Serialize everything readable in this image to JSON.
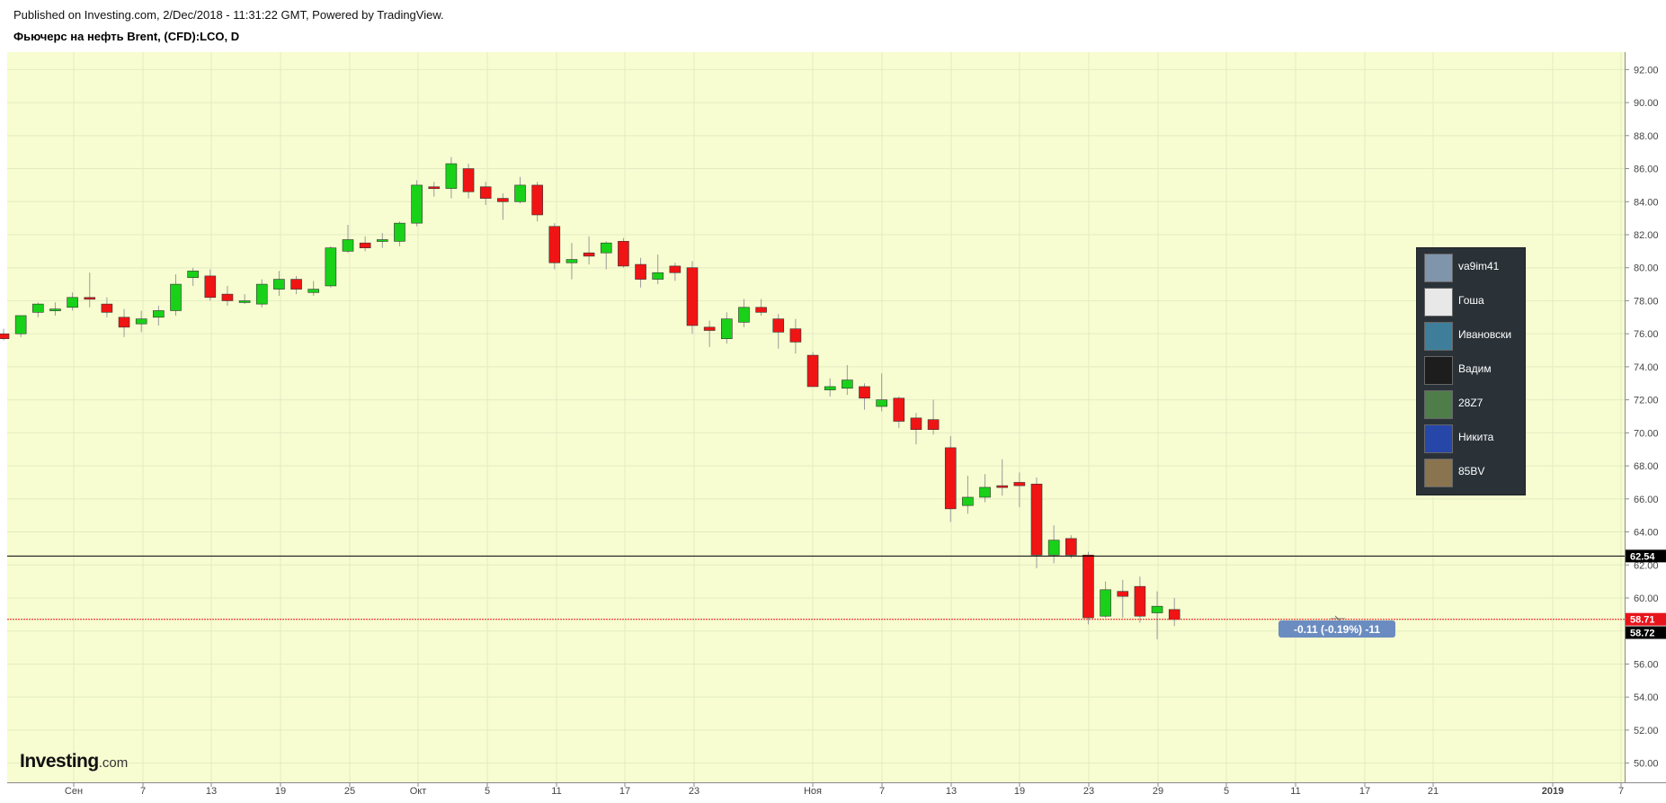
{
  "header": {
    "published": "Published on Investing.com, 2/Dec/2018 - 11:31:22 GMT, Powered by TradingView.",
    "title": "Фьючерс на нефть Brent, (CFD):LCO, D"
  },
  "logo": {
    "main": "Investing",
    "suffix": ".com"
  },
  "popup": {
    "users": [
      {
        "name": "va9im41",
        "thumb_color": "#7f95ab"
      },
      {
        "name": "Гоша",
        "thumb_color": "#e8e8e8"
      },
      {
        "name": "Ивановски",
        "thumb_color": "#3f7e9a"
      },
      {
        "name": "Вадим",
        "thumb_color": "#1d1d1d"
      },
      {
        "name": "28Z7",
        "thumb_color": "#4f7d4a"
      },
      {
        "name": "Никита",
        "thumb_color": "#2747a8"
      },
      {
        "name": "85BV",
        "thumb_color": "#8a7450"
      }
    ]
  },
  "chart_data": {
    "type": "candlestick",
    "y_axis": {
      "min": 49,
      "max": 93,
      "ticks": [
        "50.00",
        "52.00",
        "54.00",
        "56.00",
        "58.00",
        "60.00",
        "62.00",
        "64.00",
        "66.00",
        "68.00",
        "70.00",
        "72.00",
        "74.00",
        "76.00",
        "78.00",
        "80.00",
        "82.00",
        "84.00",
        "86.00",
        "88.00",
        "90.00",
        "92.00"
      ]
    },
    "x_ticks": [
      "Сен",
      "7",
      "13",
      "19",
      "25",
      "Окт",
      "5",
      "11",
      "17",
      "23",
      "Ноя",
      "7",
      "13",
      "19",
      "23",
      "29",
      "5",
      "11",
      "17",
      "21",
      "2019",
      "7"
    ],
    "candles": [
      {
        "o": 76.0,
        "h": 76.3,
        "l": 75.6,
        "c": 75.7
      },
      {
        "o": 76.0,
        "h": 77.1,
        "l": 75.8,
        "c": 77.1
      },
      {
        "o": 77.3,
        "h": 77.9,
        "l": 77.0,
        "c": 77.8
      },
      {
        "o": 77.5,
        "h": 77.9,
        "l": 77.1,
        "c": 77.5
      },
      {
        "o": 77.6,
        "h": 78.5,
        "l": 77.4,
        "c": 78.2
      },
      {
        "o": 78.2,
        "h": 79.7,
        "l": 77.6,
        "c": 78.1
      },
      {
        "o": 77.8,
        "h": 78.2,
        "l": 77.0,
        "c": 77.3
      },
      {
        "o": 77.0,
        "h": 77.5,
        "l": 75.8,
        "c": 76.4
      },
      {
        "o": 76.6,
        "h": 77.4,
        "l": 76.1,
        "c": 76.9
      },
      {
        "o": 77.0,
        "h": 77.7,
        "l": 76.5,
        "c": 77.4
      },
      {
        "o": 77.4,
        "h": 79.6,
        "l": 77.1,
        "c": 79.0
      },
      {
        "o": 79.4,
        "h": 80.0,
        "l": 78.9,
        "c": 79.8
      },
      {
        "o": 79.5,
        "h": 79.9,
        "l": 78.0,
        "c": 78.2
      },
      {
        "o": 78.4,
        "h": 78.9,
        "l": 77.7,
        "c": 78.0
      },
      {
        "o": 78.0,
        "h": 78.4,
        "l": 77.8,
        "c": 78.0
      },
      {
        "o": 77.8,
        "h": 79.3,
        "l": 77.6,
        "c": 79.0
      },
      {
        "o": 78.7,
        "h": 79.8,
        "l": 78.3,
        "c": 79.3
      },
      {
        "o": 79.3,
        "h": 79.5,
        "l": 78.4,
        "c": 78.7
      },
      {
        "o": 78.5,
        "h": 79.2,
        "l": 78.3,
        "c": 78.7
      },
      {
        "o": 78.9,
        "h": 81.3,
        "l": 78.8,
        "c": 81.2
      },
      {
        "o": 81.0,
        "h": 82.6,
        "l": 80.9,
        "c": 81.7
      },
      {
        "o": 81.5,
        "h": 81.9,
        "l": 81.0,
        "c": 81.2
      },
      {
        "o": 81.6,
        "h": 82.1,
        "l": 81.2,
        "c": 81.7
      },
      {
        "o": 81.6,
        "h": 82.8,
        "l": 81.3,
        "c": 82.7
      },
      {
        "o": 82.7,
        "h": 85.3,
        "l": 82.5,
        "c": 85.0
      },
      {
        "o": 84.9,
        "h": 85.2,
        "l": 84.3,
        "c": 84.8
      },
      {
        "o": 84.8,
        "h": 86.7,
        "l": 84.2,
        "c": 86.3
      },
      {
        "o": 86.0,
        "h": 86.3,
        "l": 84.2,
        "c": 84.6
      },
      {
        "o": 84.9,
        "h": 85.2,
        "l": 83.8,
        "c": 84.2
      },
      {
        "o": 84.2,
        "h": 84.5,
        "l": 82.9,
        "c": 84.0
      },
      {
        "o": 84.0,
        "h": 85.5,
        "l": 83.9,
        "c": 85.0
      },
      {
        "o": 85.0,
        "h": 85.2,
        "l": 82.8,
        "c": 83.2
      },
      {
        "o": 82.5,
        "h": 82.7,
        "l": 79.9,
        "c": 80.3
      },
      {
        "o": 80.3,
        "h": 81.5,
        "l": 79.3,
        "c": 80.5
      },
      {
        "o": 80.9,
        "h": 81.9,
        "l": 80.2,
        "c": 80.7
      },
      {
        "o": 80.9,
        "h": 81.6,
        "l": 79.9,
        "c": 81.5
      },
      {
        "o": 81.6,
        "h": 81.8,
        "l": 80.0,
        "c": 80.1
      },
      {
        "o": 80.2,
        "h": 80.6,
        "l": 78.8,
        "c": 79.3
      },
      {
        "o": 79.3,
        "h": 80.8,
        "l": 79.0,
        "c": 79.7
      },
      {
        "o": 80.1,
        "h": 80.3,
        "l": 79.2,
        "c": 79.7
      },
      {
        "o": 80.0,
        "h": 80.4,
        "l": 76.0,
        "c": 76.5
      },
      {
        "o": 76.4,
        "h": 76.8,
        "l": 75.2,
        "c": 76.2
      },
      {
        "o": 75.7,
        "h": 77.3,
        "l": 75.4,
        "c": 76.9
      },
      {
        "o": 76.7,
        "h": 78.1,
        "l": 76.4,
        "c": 77.6
      },
      {
        "o": 77.6,
        "h": 78.1,
        "l": 77.1,
        "c": 77.3
      },
      {
        "o": 76.9,
        "h": 77.2,
        "l": 75.1,
        "c": 76.1
      },
      {
        "o": 76.3,
        "h": 76.9,
        "l": 74.8,
        "c": 75.5
      },
      {
        "o": 74.7,
        "h": 74.9,
        "l": 72.9,
        "c": 72.8
      },
      {
        "o": 72.6,
        "h": 73.3,
        "l": 72.2,
        "c": 72.8
      },
      {
        "o": 72.7,
        "h": 74.1,
        "l": 72.3,
        "c": 73.2
      },
      {
        "o": 72.8,
        "h": 73.0,
        "l": 71.4,
        "c": 72.1
      },
      {
        "o": 71.6,
        "h": 73.6,
        "l": 71.3,
        "c": 72.0
      },
      {
        "o": 72.1,
        "h": 72.2,
        "l": 70.3,
        "c": 70.7
      },
      {
        "o": 70.9,
        "h": 71.2,
        "l": 69.3,
        "c": 70.2
      },
      {
        "o": 70.8,
        "h": 72.0,
        "l": 69.9,
        "c": 70.2
      },
      {
        "o": 69.1,
        "h": 69.8,
        "l": 64.6,
        "c": 65.4
      },
      {
        "o": 65.6,
        "h": 67.4,
        "l": 65.1,
        "c": 66.1
      },
      {
        "o": 66.1,
        "h": 67.5,
        "l": 65.8,
        "c": 66.7
      },
      {
        "o": 66.8,
        "h": 68.4,
        "l": 66.2,
        "c": 66.7
      },
      {
        "o": 67.0,
        "h": 67.6,
        "l": 65.5,
        "c": 66.8
      },
      {
        "o": 66.9,
        "h": 67.3,
        "l": 61.8,
        "c": 62.6
      },
      {
        "o": 62.6,
        "h": 64.4,
        "l": 62.1,
        "c": 63.5
      },
      {
        "o": 63.6,
        "h": 63.8,
        "l": 62.4,
        "c": 62.6
      },
      {
        "o": 62.6,
        "h": 62.8,
        "l": 58.4,
        "c": 58.8
      },
      {
        "o": 58.9,
        "h": 61.0,
        "l": 58.8,
        "c": 60.5
      },
      {
        "o": 60.4,
        "h": 61.1,
        "l": 58.8,
        "c": 60.1
      },
      {
        "o": 60.7,
        "h": 61.3,
        "l": 58.5,
        "c": 58.9
      },
      {
        "o": 59.1,
        "h": 60.4,
        "l": 57.5,
        "c": 59.5
      },
      {
        "o": 59.3,
        "h": 60.0,
        "l": 58.3,
        "c": 58.7
      }
    ],
    "price_lines": [
      {
        "value": 62.54,
        "label": "62.54",
        "color": "#000000"
      },
      {
        "value": 58.71,
        "label": "58.71",
        "color": "#e8141c"
      },
      {
        "value": 58.72,
        "label": "58.72",
        "color": "#000000"
      }
    ],
    "annotation": "-0.11 (-0.19%) -11",
    "colors": {
      "up": "#19d119",
      "down": "#f01414",
      "background": "#f7fdd0",
      "grid": "#e3ebc4"
    }
  }
}
